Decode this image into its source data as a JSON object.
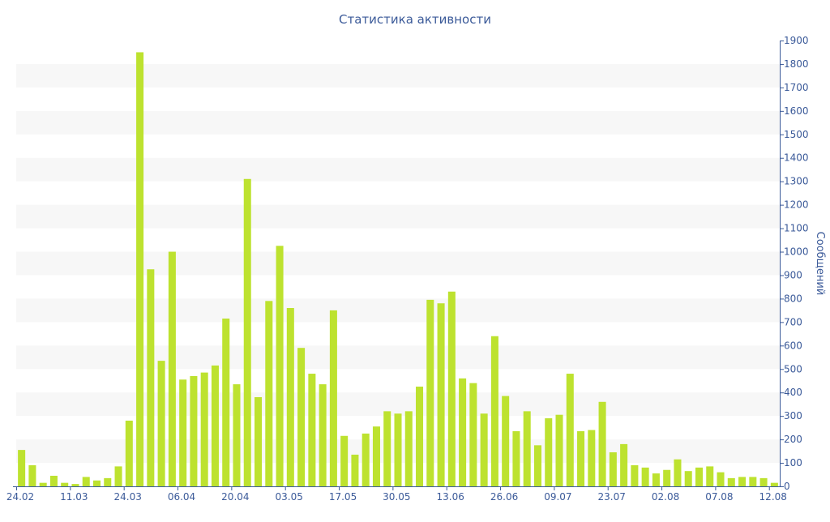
{
  "chart_data": {
    "type": "bar",
    "title": "Статистика активности",
    "xlabel": "",
    "ylabel": "Сообщений",
    "ylim": [
      0,
      1900
    ],
    "y_ticks": [
      0,
      100,
      200,
      300,
      400,
      500,
      600,
      700,
      800,
      900,
      1000,
      1100,
      1200,
      1300,
      1400,
      1500,
      1600,
      1700,
      1800,
      1900
    ],
    "y_axis_side": "right",
    "grid": "alternating horizontal bands",
    "x_tick_labels": [
      {
        "index": 0,
        "label": "24.02"
      },
      {
        "index": 5,
        "label": "11.03"
      },
      {
        "index": 10,
        "label": "24.03"
      },
      {
        "index": 15,
        "label": "06.04"
      },
      {
        "index": 20,
        "label": "20.04"
      },
      {
        "index": 25,
        "label": "03.05"
      },
      {
        "index": 30,
        "label": "17.05"
      },
      {
        "index": 35,
        "label": "30.05"
      },
      {
        "index": 40,
        "label": "13.06"
      },
      {
        "index": 45,
        "label": "26.06"
      },
      {
        "index": 50,
        "label": "09.07"
      },
      {
        "index": 55,
        "label": "23.07"
      },
      {
        "index": 60,
        "label": "02.08"
      },
      {
        "index": 65,
        "label": "07.08"
      },
      {
        "index": 70,
        "label": "12.08"
      }
    ],
    "values": [
      155,
      90,
      15,
      45,
      15,
      10,
      40,
      25,
      35,
      85,
      280,
      1850,
      925,
      535,
      1000,
      455,
      470,
      485,
      515,
      715,
      435,
      1310,
      380,
      790,
      1025,
      760,
      590,
      480,
      435,
      750,
      215,
      135,
      225,
      255,
      320,
      310,
      320,
      425,
      795,
      780,
      830,
      460,
      440,
      310,
      640,
      385,
      235,
      320,
      175,
      290,
      305,
      480,
      235,
      240,
      360,
      145,
      180,
      90,
      80,
      55,
      70,
      115,
      65,
      80,
      85,
      60,
      35,
      40,
      40,
      35,
      15
    ],
    "colors": {
      "bar": "#bde22f",
      "axis_text": "#3b5a99",
      "band": "#f7f7f7",
      "axis_line": "#3b5a99"
    }
  }
}
